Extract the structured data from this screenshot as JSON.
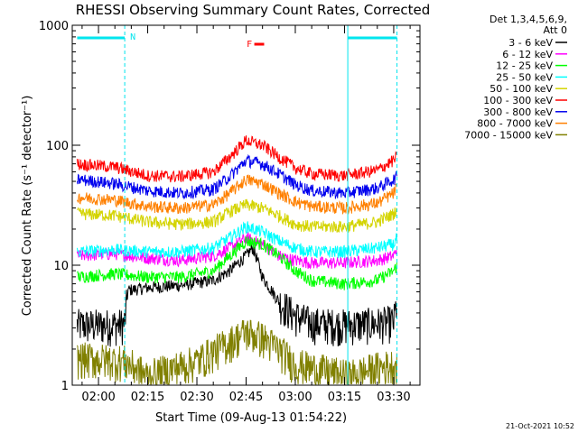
{
  "chart_data": {
    "type": "line",
    "title": "RHESSI Observing Summary Count Rates, Corrected",
    "xlabel": "Start Time (09-Aug-13 01:54:22)",
    "ylabel": "Corrected Count Rate (s⁻¹ detector⁻¹)",
    "yscale": "log",
    "ylim": [
      1,
      1000
    ],
    "xlim_minutes": [
      -8,
      98
    ],
    "yticks": [
      {
        "v": 1,
        "label": "1"
      },
      {
        "v": 10,
        "label": "10"
      },
      {
        "v": 100,
        "label": "100"
      },
      {
        "v": 1000,
        "label": "1000"
      }
    ],
    "xticks": [
      {
        "m": 0,
        "label": "02:00"
      },
      {
        "m": 15,
        "label": "02:15"
      },
      {
        "m": 30,
        "label": "02:30"
      },
      {
        "m": 45,
        "label": "02:45"
      },
      {
        "m": 60,
        "label": "03:00"
      },
      {
        "m": 75,
        "label": "03:15"
      },
      {
        "m": 90,
        "label": "03:30"
      }
    ],
    "legend_header": [
      "Det 1,3,4,5,6,9,",
      "Att 0"
    ],
    "legend_placement": "right",
    "timestamp": "21-Oct-2021 10:52",
    "annotations": [
      {
        "text": "N",
        "m": 10.5,
        "color": "#00e5ee"
      },
      {
        "text": "F",
        "m": 46,
        "color": "#ff0000"
      }
    ],
    "flag_bars": [
      {
        "name": "night",
        "color": "#00e5ee",
        "ranges": [
          [
            -6.5,
            8
          ],
          [
            76,
            91
          ]
        ]
      },
      {
        "name": "flare",
        "color": "#ff0000",
        "ranges": [
          [
            47.5,
            50.5
          ]
        ]
      }
    ],
    "vlines_solid": [
      76
    ],
    "vlines_dashed": [
      8,
      91
    ],
    "series": [
      {
        "name": "3 - 6 keV",
        "color": "#000000",
        "x": [
          -6.5,
          6,
          8,
          9,
          15,
          25,
          35,
          40,
          45,
          47,
          48,
          50,
          55,
          60,
          65,
          75,
          85,
          90,
          91
        ],
        "y": [
          3.2,
          3.2,
          3.3,
          6.2,
          6.5,
          6.8,
          7.5,
          9,
          12,
          14,
          12,
          8,
          5,
          3.8,
          3.3,
          3.2,
          3.3,
          3.4,
          5
        ]
      },
      {
        "name": "6 - 12 keV",
        "color": "#ff00ff",
        "x": [
          -6.5,
          5,
          15,
          25,
          35,
          40,
          45,
          50,
          55,
          60,
          65,
          75,
          85,
          90,
          91
        ],
        "y": [
          12,
          12.5,
          11.5,
          11,
          12,
          14,
          17,
          15,
          12,
          11,
          10.5,
          10.5,
          11,
          12,
          14
        ]
      },
      {
        "name": "12 - 25 keV",
        "color": "#00ff00",
        "x": [
          -6.5,
          5,
          15,
          25,
          35,
          40,
          45,
          50,
          55,
          60,
          65,
          75,
          85,
          90,
          91
        ],
        "y": [
          8,
          8.5,
          8,
          8,
          9,
          12,
          16,
          15,
          12,
          9,
          7.5,
          7,
          7.5,
          9,
          10
        ]
      },
      {
        "name": "25 - 50 keV",
        "color": "#00ffff",
        "x": [
          -6.5,
          5,
          15,
          25,
          35,
          40,
          45,
          50,
          55,
          60,
          65,
          75,
          85,
          90,
          91
        ],
        "y": [
          13,
          13.5,
          13,
          13,
          14,
          17,
          21,
          19,
          16,
          14,
          13,
          13,
          14,
          15,
          17
        ]
      },
      {
        "name": "50 - 100 keV",
        "color": "#d4d400",
        "x": [
          -6.5,
          5,
          15,
          25,
          35,
          40,
          45,
          50,
          55,
          60,
          65,
          75,
          85,
          90,
          91
        ],
        "y": [
          27,
          26,
          23,
          22,
          23,
          28,
          32,
          30,
          26,
          22,
          21,
          21,
          23,
          27,
          30
        ]
      },
      {
        "name": "100 - 300 keV",
        "color": "#ff0000",
        "x": [
          -6.5,
          5,
          15,
          25,
          35,
          40,
          45,
          50,
          55,
          60,
          65,
          75,
          85,
          90,
          91
        ],
        "y": [
          70,
          66,
          56,
          55,
          60,
          80,
          110,
          100,
          80,
          65,
          58,
          56,
          62,
          75,
          80
        ]
      },
      {
        "name": "300 - 800 keV",
        "color": "#0000ee",
        "x": [
          -6.5,
          5,
          15,
          25,
          35,
          40,
          45,
          50,
          55,
          60,
          65,
          75,
          85,
          90,
          91
        ],
        "y": [
          52,
          48,
          42,
          40,
          43,
          55,
          75,
          70,
          58,
          47,
          42,
          40,
          44,
          52,
          55
        ]
      },
      {
        "name": "800 - 7000 keV",
        "color": "#ff8000",
        "x": [
          -6.5,
          5,
          15,
          25,
          35,
          40,
          45,
          50,
          55,
          60,
          65,
          75,
          85,
          90,
          91
        ],
        "y": [
          37,
          35,
          31,
          30,
          32,
          40,
          52,
          48,
          40,
          34,
          31,
          30,
          33,
          40,
          44
        ]
      },
      {
        "name": "7000 - 15000 keV",
        "color": "#808000",
        "x": [
          -6.5,
          8,
          15,
          30,
          40,
          45,
          50,
          55,
          60,
          76,
          85,
          91
        ],
        "y": [
          1.7,
          1.6,
          1.2,
          1.6,
          2.3,
          2.8,
          2.5,
          2,
          1.5,
          1.2,
          1.4,
          1.5
        ]
      }
    ]
  }
}
